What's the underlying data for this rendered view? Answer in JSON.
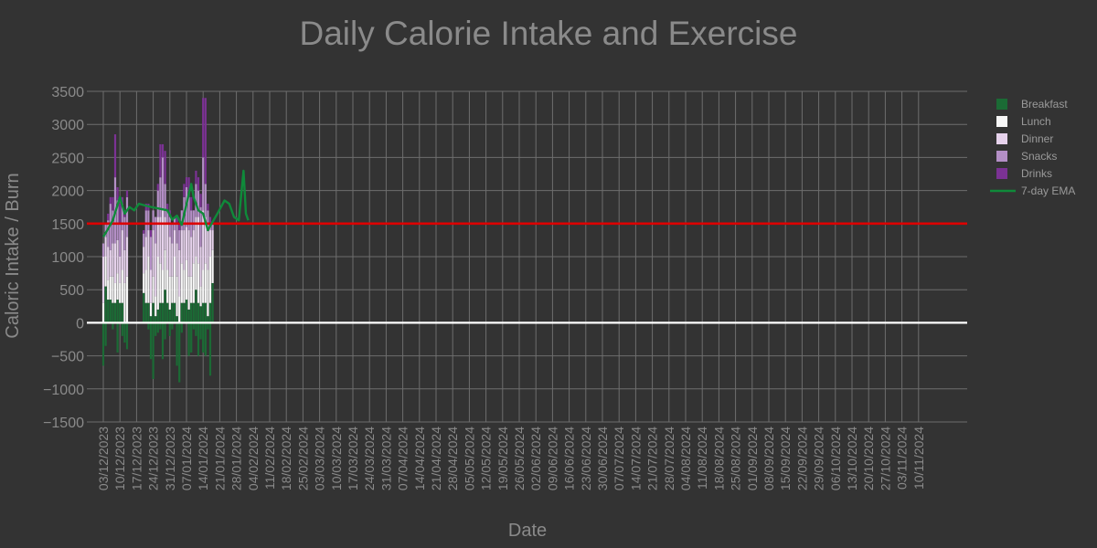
{
  "chart_data": {
    "type": "bar",
    "title": "Daily Calorie Intake and Exercise",
    "xlabel": "Date",
    "ylabel": "Caloric Intake / Burn",
    "ylim": [
      -1500,
      3500
    ],
    "xlim": [
      "2023-12-03",
      "2024-11-10"
    ],
    "grid": true,
    "legend_position": "top-right",
    "x_tick_labels": [
      "03/12/2023",
      "10/12/2023",
      "17/12/2023",
      "24/12/2023",
      "31/12/2023",
      "07/01/2024",
      "14/01/2024",
      "21/01/2024",
      "28/01/2024",
      "04/02/2024",
      "11/02/2024",
      "18/02/2024",
      "25/02/2024",
      "03/03/2024",
      "10/03/2024",
      "17/03/2024",
      "24/03/2024",
      "31/03/2024",
      "07/04/2024",
      "14/04/2024",
      "21/04/2024",
      "28/04/2024",
      "05/05/2024",
      "12/05/2024",
      "19/05/2024",
      "26/05/2024",
      "02/06/2024",
      "09/06/2024",
      "16/06/2024",
      "23/06/2024",
      "30/06/2024",
      "07/07/2024",
      "14/07/2024",
      "21/07/2024",
      "28/07/2024",
      "04/08/2024",
      "11/08/2024",
      "18/08/2024",
      "25/08/2024",
      "01/09/2024",
      "08/09/2024",
      "15/09/2024",
      "22/09/2024",
      "29/09/2024",
      "06/10/2024",
      "13/10/2024",
      "20/10/2024",
      "27/10/2024",
      "03/11/2024",
      "10/11/2024"
    ],
    "y_tick_labels": [
      "3500",
      "3000",
      "2500",
      "2000",
      "1500",
      "1000",
      "500",
      "0",
      "−500",
      "−1000",
      "−1500"
    ],
    "y_tick_values": [
      3500,
      3000,
      2500,
      2000,
      1500,
      1000,
      500,
      0,
      -500,
      -1000,
      -1500
    ],
    "target_line": {
      "value": 1500,
      "color": "#dd0000"
    },
    "zero_line": {
      "value": 0,
      "color": "#ffffff"
    },
    "bar_colors": {
      "Breakfast": "#1b6b35",
      "Lunch": "#f7f7f7",
      "Dinner": "#e6d2ec",
      "Snacks": "#b48fc6",
      "Drinks": "#7b3294",
      "Exercise": "#1b6b35"
    },
    "ema_color": "#0f8a3a",
    "legend": [
      {
        "label": "Breakfast",
        "kind": "box",
        "color": "#1b6b35"
      },
      {
        "label": "Lunch",
        "kind": "box",
        "color": "#f7f7f7"
      },
      {
        "label": "Dinner",
        "kind": "box",
        "color": "#e6d2ec"
      },
      {
        "label": "Snacks",
        "kind": "box",
        "color": "#b48fc6"
      },
      {
        "label": "Drinks",
        "kind": "box",
        "color": "#7b3294"
      },
      {
        "label": "7-day EMA",
        "kind": "line",
        "color": "#0f8a3a"
      }
    ],
    "days": [
      {
        "date": "2023-12-03",
        "breakfast": 0,
        "lunch": 300,
        "dinner": 700,
        "snacks": 200,
        "drinks": 0,
        "exercise": -650
      },
      {
        "date": "2023-12-04",
        "breakfast": 550,
        "lunch": 450,
        "dinner": 300,
        "snacks": 200,
        "drinks": 0,
        "exercise": -350
      },
      {
        "date": "2023-12-05",
        "breakfast": 350,
        "lunch": 300,
        "dinner": 500,
        "snacks": 400,
        "drinks": 100,
        "exercise": 0
      },
      {
        "date": "2023-12-06",
        "breakfast": 350,
        "lunch": 350,
        "dinner": 400,
        "snacks": 700,
        "drinks": 100,
        "exercise": 0
      },
      {
        "date": "2023-12-07",
        "breakfast": 300,
        "lunch": 400,
        "dinner": 500,
        "snacks": 500,
        "drinks": 200,
        "exercise": -100
      },
      {
        "date": "2023-12-08",
        "breakfast": 300,
        "lunch": 300,
        "dinner": 600,
        "snacks": 1000,
        "drinks": 650,
        "exercise": 0
      },
      {
        "date": "2023-12-09",
        "breakfast": 350,
        "lunch": 400,
        "dinner": 500,
        "snacks": 600,
        "drinks": 200,
        "exercise": -450
      },
      {
        "date": "2023-12-10",
        "breakfast": 300,
        "lunch": 300,
        "dinner": 400,
        "snacks": 500,
        "drinks": 300,
        "exercise": 0
      },
      {
        "date": "2023-12-11",
        "breakfast": 300,
        "lunch": 500,
        "dinner": 600,
        "snacks": 400,
        "drinks": 100,
        "exercise": -200
      },
      {
        "date": "2023-12-12",
        "breakfast": 0,
        "lunch": 600,
        "dinner": 500,
        "snacks": 500,
        "drinks": 100,
        "exercise": -300
      },
      {
        "date": "2023-12-13",
        "breakfast": 0,
        "lunch": 700,
        "dinner": 600,
        "snacks": 600,
        "drinks": 100,
        "exercise": -400
      },
      {
        "date": "2023-12-20",
        "breakfast": 450,
        "lunch": 300,
        "dinner": 400,
        "snacks": 200,
        "drinks": 50,
        "exercise": 0
      },
      {
        "date": "2023-12-21",
        "breakfast": 300,
        "lunch": 500,
        "dinner": 500,
        "snacks": 400,
        "drinks": 100,
        "exercise": 0
      },
      {
        "date": "2023-12-22",
        "breakfast": 300,
        "lunch": 700,
        "dinner": 400,
        "snacks": 300,
        "drinks": 100,
        "exercise": -100
      },
      {
        "date": "2023-12-23",
        "breakfast": 100,
        "lunch": 200,
        "dinner": 500,
        "snacks": 500,
        "drinks": 100,
        "exercise": -550
      },
      {
        "date": "2023-12-24",
        "breakfast": 300,
        "lunch": 400,
        "dinner": 700,
        "snacks": 300,
        "drinks": 0,
        "exercise": -850
      },
      {
        "date": "2023-12-25",
        "breakfast": 100,
        "lunch": 300,
        "dinner": 800,
        "snacks": 400,
        "drinks": 0,
        "exercise": -200
      },
      {
        "date": "2023-12-26",
        "breakfast": 200,
        "lunch": 800,
        "dinner": 600,
        "snacks": 400,
        "drinks": 100,
        "exercise": -150
      },
      {
        "date": "2023-12-27",
        "breakfast": 300,
        "lunch": 600,
        "dinner": 700,
        "snacks": 600,
        "drinks": 500,
        "exercise": -100
      },
      {
        "date": "2023-12-28",
        "breakfast": 300,
        "lunch": 500,
        "dinner": 900,
        "snacks": 800,
        "drinks": 200,
        "exercise": -550
      },
      {
        "date": "2023-12-29",
        "breakfast": 500,
        "lunch": 600,
        "dinner": 500,
        "snacks": 500,
        "drinks": 500,
        "exercise": -250
      },
      {
        "date": "2023-12-30",
        "breakfast": 300,
        "lunch": 500,
        "dinner": 700,
        "snacks": 200,
        "drinks": 100,
        "exercise": 0
      },
      {
        "date": "2023-12-31",
        "breakfast": 200,
        "lunch": 500,
        "dinner": 600,
        "snacks": 300,
        "drinks": 100,
        "exercise": -200
      },
      {
        "date": "2024-01-01",
        "breakfast": 300,
        "lunch": 400,
        "dinner": 500,
        "snacks": 300,
        "drinks": 0,
        "exercise": -100
      },
      {
        "date": "2024-01-02",
        "breakfast": 300,
        "lunch": 700,
        "dinner": 400,
        "snacks": 200,
        "drinks": 0,
        "exercise": 0
      },
      {
        "date": "2024-01-03",
        "breakfast": 100,
        "lunch": 600,
        "dinner": 500,
        "snacks": 300,
        "drinks": 100,
        "exercise": -650
      },
      {
        "date": "2024-01-04",
        "breakfast": 0,
        "lunch": 400,
        "dinner": 700,
        "snacks": 300,
        "drinks": 100,
        "exercise": -900
      },
      {
        "date": "2024-01-05",
        "breakfast": 300,
        "lunch": 600,
        "dinner": 500,
        "snacks": 300,
        "drinks": 0,
        "exercise": -150
      },
      {
        "date": "2024-01-06",
        "breakfast": 300,
        "lunch": 500,
        "dinner": 600,
        "snacks": 500,
        "drinks": 200,
        "exercise": 0
      },
      {
        "date": "2024-01-07",
        "breakfast": 350,
        "lunch": 600,
        "dinner": 500,
        "snacks": 600,
        "drinks": 150,
        "exercise": 0
      },
      {
        "date": "2024-01-08",
        "breakfast": 200,
        "lunch": 500,
        "dinner": 700,
        "snacks": 500,
        "drinks": 300,
        "exercise": -500
      },
      {
        "date": "2024-01-09",
        "breakfast": 300,
        "lunch": 400,
        "dinner": 600,
        "snacks": 400,
        "drinks": 200,
        "exercise": -450
      },
      {
        "date": "2024-01-10",
        "breakfast": 300,
        "lunch": 600,
        "dinner": 500,
        "snacks": 300,
        "drinks": 0,
        "exercise": -100
      },
      {
        "date": "2024-01-11",
        "breakfast": 500,
        "lunch": 500,
        "dinner": 600,
        "snacks": 500,
        "drinks": 200,
        "exercise": -200
      },
      {
        "date": "2024-01-12",
        "breakfast": 300,
        "lunch": 600,
        "dinner": 700,
        "snacks": 400,
        "drinks": 200,
        "exercise": -500
      },
      {
        "date": "2024-01-13",
        "breakfast": 250,
        "lunch": 300,
        "dinner": 600,
        "snacks": 600,
        "drinks": 200,
        "exercise": -250
      },
      {
        "date": "2024-01-14",
        "breakfast": 300,
        "lunch": 500,
        "dinner": 900,
        "snacks": 800,
        "drinks": 900,
        "exercise": -450
      },
      {
        "date": "2024-01-15",
        "breakfast": 300,
        "lunch": 600,
        "dinner": 700,
        "snacks": 500,
        "drinks": 1300,
        "exercise": -500
      },
      {
        "date": "2024-01-16",
        "breakfast": 100,
        "lunch": 700,
        "dinner": 600,
        "snacks": 300,
        "drinks": 100,
        "exercise": -100
      },
      {
        "date": "2024-01-17",
        "breakfast": 300,
        "lunch": 700,
        "dinner": 400,
        "snacks": 100,
        "drinks": 100,
        "exercise": -800
      },
      {
        "date": "2024-01-18",
        "breakfast": 600,
        "lunch": 500,
        "dinner": 300,
        "snacks": 100,
        "drinks": 0,
        "exercise": 0
      }
    ],
    "ema": [
      {
        "date": "2023-12-03",
        "value": 1300
      },
      {
        "date": "2023-12-05",
        "value": 1420
      },
      {
        "date": "2023-12-07",
        "value": 1550
      },
      {
        "date": "2023-12-10",
        "value": 1900
      },
      {
        "date": "2023-12-12",
        "value": 1650
      },
      {
        "date": "2023-12-14",
        "value": 1750
      },
      {
        "date": "2023-12-16",
        "value": 1700
      },
      {
        "date": "2023-12-18",
        "value": 1800
      },
      {
        "date": "2023-12-22",
        "value": 1760
      },
      {
        "date": "2023-12-30",
        "value": 1700
      },
      {
        "date": "2024-01-01",
        "value": 1560
      },
      {
        "date": "2024-01-03",
        "value": 1620
      },
      {
        "date": "2024-01-05",
        "value": 1480
      },
      {
        "date": "2024-01-08",
        "value": 1950
      },
      {
        "date": "2024-01-09",
        "value": 2100
      },
      {
        "date": "2024-01-10",
        "value": 1900
      },
      {
        "date": "2024-01-12",
        "value": 1700
      },
      {
        "date": "2024-01-14",
        "value": 1650
      },
      {
        "date": "2024-01-16",
        "value": 1400
      },
      {
        "date": "2024-01-20",
        "value": 1650
      },
      {
        "date": "2024-01-23",
        "value": 1850
      },
      {
        "date": "2024-01-25",
        "value": 1800
      },
      {
        "date": "2024-01-27",
        "value": 1600
      },
      {
        "date": "2024-01-29",
        "value": 1550
      },
      {
        "date": "2024-01-31",
        "value": 2300
      },
      {
        "date": "2024-02-01",
        "value": 1650
      },
      {
        "date": "2024-02-02",
        "value": 1550
      }
    ]
  }
}
